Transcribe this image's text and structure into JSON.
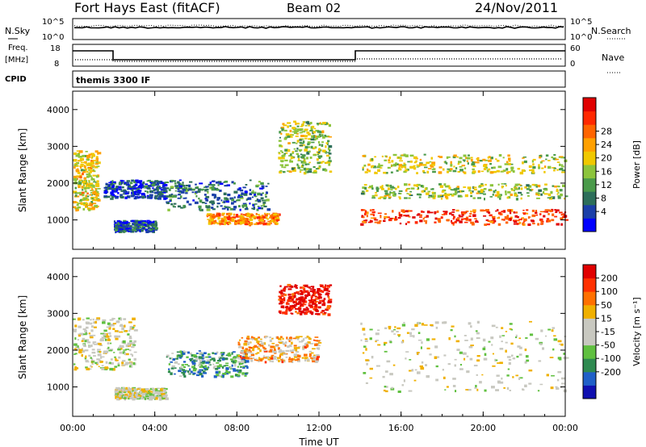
{
  "header": {
    "station": "Fort Hays East (fitACF)",
    "beam": "Beam 02",
    "date": "24/Nov/2011"
  },
  "panels": {
    "noise": {
      "left_label": "N.Sky",
      "right_label": "N.Search",
      "left_ticks": [
        "10^5",
        "10^0"
      ],
      "right_ticks": [
        "10^5",
        "10^0"
      ]
    },
    "freq": {
      "left_label_1": "Freq.",
      "left_label_2": "[MHz]",
      "right_label": "Nave",
      "left_ticks": [
        "18",
        "8"
      ],
      "right_ticks": [
        "60",
        "0"
      ]
    },
    "cpid": {
      "label": "CPID",
      "text": "themis 3300 IF"
    }
  },
  "chart_data": [
    {
      "type": "heatmap",
      "title": "Power",
      "ylabel": "Slant Range [km]",
      "xlabel": "",
      "x_ticks": [
        "00:00",
        "04:00",
        "08:00",
        "12:00",
        "16:00",
        "20:00",
        "00:00"
      ],
      "y_ticks": [
        "1000",
        "2000",
        "3000",
        "4000"
      ],
      "ylim": [
        200,
        4500
      ],
      "colorbar_label": "Power [dB]",
      "colorbar_ticks": [
        "4",
        "8",
        "12",
        "16",
        "20",
        "24",
        "28"
      ],
      "colorbar_colors": [
        "#0000ff",
        "#1b3fa8",
        "#2d6e5a",
        "#4a9a4a",
        "#8cc43c",
        "#f0c800",
        "#ffa000",
        "#ff6400",
        "#ff2800",
        "#e00000"
      ],
      "scatter_blobs": [
        {
          "t": [
            0.0,
            1.2
          ],
          "r": [
            1300,
            2900
          ],
          "level": 0.55
        },
        {
          "t": [
            1.5,
            4.5
          ],
          "r": [
            1600,
            2100
          ],
          "level": 0.15
        },
        {
          "t": [
            2.0,
            4.0
          ],
          "r": [
            700,
            1000
          ],
          "level": 0.2
        },
        {
          "t": [
            4.5,
            9.5
          ],
          "r": [
            1300,
            2100
          ],
          "level": 0.25
        },
        {
          "t": [
            6.5,
            10.0
          ],
          "r": [
            900,
            1200
          ],
          "level": 0.7
        },
        {
          "t": [
            10.0,
            12.5
          ],
          "r": [
            2300,
            3700
          ],
          "level": 0.45
        },
        {
          "t": [
            14.0,
            24.0
          ],
          "r": [
            900,
            1300
          ],
          "level": 0.85
        },
        {
          "t": [
            14.0,
            24.0
          ],
          "r": [
            1600,
            2000
          ],
          "level": 0.45
        },
        {
          "t": [
            14.0,
            24.0
          ],
          "r": [
            2300,
            2800
          ],
          "level": 0.5
        }
      ]
    },
    {
      "type": "heatmap",
      "title": "Velocity",
      "ylabel": "Slant Range [km]",
      "xlabel": "Time UT",
      "x_ticks": [
        "00:00",
        "04:00",
        "08:00",
        "12:00",
        "16:00",
        "20:00",
        "00:00"
      ],
      "y_ticks": [
        "1000",
        "2000",
        "3000",
        "4000"
      ],
      "ylim": [
        200,
        4500
      ],
      "colorbar_label": "Velocity [m s⁻¹]",
      "colorbar_ticks": [
        "200",
        "100",
        "50",
        "15",
        "-15",
        "-50",
        "-100",
        "-200"
      ],
      "colorbar_colors": [
        "#1010b0",
        "#2060c8",
        "#2e8a50",
        "#60c040",
        "#c8c8c0",
        "#c8c8c0",
        "#f0b000",
        "#ff7000",
        "#ff3000",
        "#e00000"
      ],
      "scatter_blobs": [
        {
          "t": [
            0.0,
            3.0
          ],
          "r": [
            1500,
            2900
          ],
          "level": 0.5
        },
        {
          "t": [
            2.0,
            4.5
          ],
          "r": [
            700,
            1000
          ],
          "level": 0.5
        },
        {
          "t": [
            4.5,
            8.5
          ],
          "r": [
            1300,
            2000
          ],
          "level": 0.3
        },
        {
          "t": [
            8.0,
            12.0
          ],
          "r": [
            1700,
            2400
          ],
          "level": 0.65
        },
        {
          "t": [
            10.0,
            12.5
          ],
          "r": [
            3000,
            3800
          ],
          "level": 0.95
        },
        {
          "t": [
            14.0,
            24.0
          ],
          "r": [
            900,
            2800
          ],
          "level": 0.5
        }
      ]
    }
  ]
}
